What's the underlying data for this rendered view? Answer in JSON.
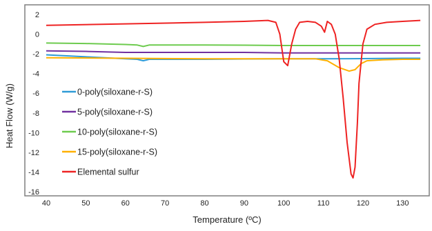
{
  "chart_data": {
    "type": "line",
    "xlabel": "Temperature (ºC)",
    "ylabel": "Heat Flow (W/g)",
    "xlim": [
      40,
      135
    ],
    "ylim": [
      -16,
      2
    ],
    "xticks": [
      "40",
      "50",
      "60",
      "70",
      "80",
      "90",
      "100",
      "110",
      "120",
      "130"
    ],
    "yticks": [
      "2",
      "0",
      "-2",
      "-4",
      "-6",
      "-8",
      "-10",
      "-12",
      "-14",
      "-16"
    ],
    "grid": false,
    "legend_position": "left",
    "series": [
      {
        "name": "0-poly(siloxane-r-S)",
        "color": "#2E9BD6",
        "x": [
          40,
          50,
          60,
          63,
          64.5,
          66,
          70,
          80,
          90,
          100,
          110,
          120,
          130,
          134.5
        ],
        "y": [
          -2.1,
          -2.3,
          -2.5,
          -2.55,
          -2.7,
          -2.55,
          -2.55,
          -2.55,
          -2.52,
          -2.5,
          -2.5,
          -2.48,
          -2.45,
          -2.45
        ]
      },
      {
        "name": "5-poly(siloxane-r-S)",
        "color": "#7030A0",
        "x": [
          40,
          50,
          60,
          70,
          80,
          90,
          100,
          110,
          120,
          130,
          134.5
        ],
        "y": [
          -1.7,
          -1.75,
          -1.85,
          -1.85,
          -1.85,
          -1.85,
          -1.9,
          -1.9,
          -1.9,
          -1.9,
          -1.9
        ]
      },
      {
        "name": "10-poly(siloxane-r-S)",
        "color": "#6DCB4E",
        "x": [
          40,
          50,
          60,
          63,
          64.5,
          66,
          70,
          80,
          90,
          100,
          110,
          120,
          130,
          134.5
        ],
        "y": [
          -0.9,
          -0.95,
          -1.05,
          -1.1,
          -1.25,
          -1.1,
          -1.1,
          -1.1,
          -1.12,
          -1.15,
          -1.15,
          -1.15,
          -1.15,
          -1.15
        ]
      },
      {
        "name": "15-poly(siloxane-r-S)",
        "color": "#FFB000",
        "x": [
          40,
          60,
          80,
          100,
          108,
          111,
          114,
          116.5,
          118,
          119.5,
          121,
          125,
          130,
          134.5
        ],
        "y": [
          -2.4,
          -2.45,
          -2.5,
          -2.5,
          -2.5,
          -2.7,
          -3.4,
          -3.75,
          -3.6,
          -3.0,
          -2.7,
          -2.6,
          -2.55,
          -2.55
        ]
      },
      {
        "name": "Elemental sulfur",
        "color": "#EE2222",
        "x": [
          40,
          60,
          80,
          90,
          96,
          98,
          99,
          100,
          101,
          102,
          103,
          104,
          106,
          108,
          109.5,
          110.3,
          111,
          112,
          113,
          114,
          115,
          116,
          117,
          117.5,
          118,
          118.6,
          119,
          120,
          121,
          123,
          126,
          130,
          134.5
        ],
        "y": [
          0.9,
          1.05,
          1.2,
          1.3,
          1.4,
          1.2,
          0.0,
          -2.8,
          -3.2,
          -1.0,
          0.5,
          1.2,
          1.3,
          1.2,
          0.8,
          0.2,
          1.3,
          1.0,
          0.0,
          -2.5,
          -6.5,
          -11.0,
          -14.2,
          -14.6,
          -13.5,
          -9.0,
          -5.0,
          -1.0,
          0.5,
          1.0,
          1.2,
          1.3,
          1.4
        ]
      }
    ]
  }
}
